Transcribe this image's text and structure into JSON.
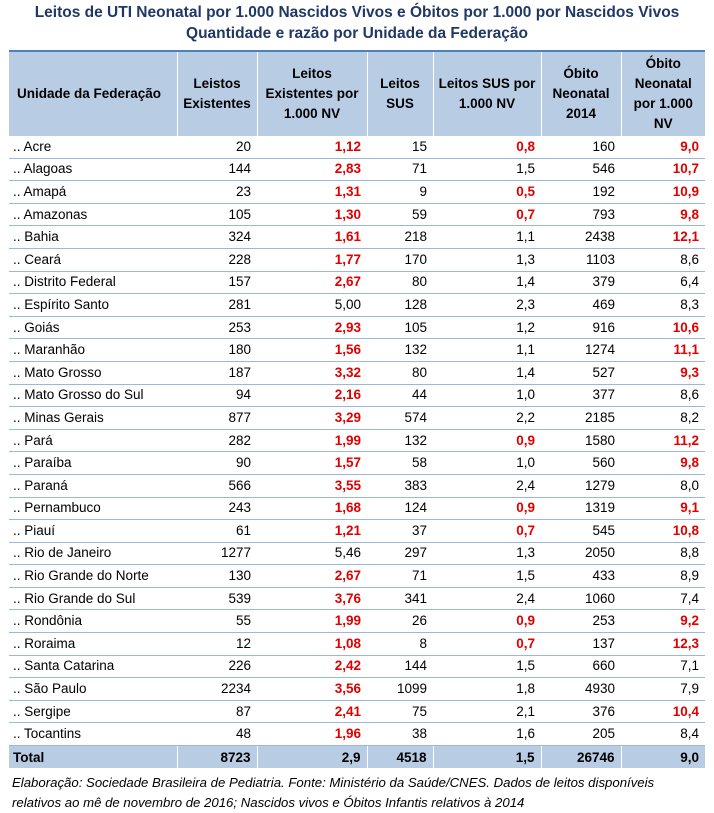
{
  "title_line1": "Leitos de UTI Neonatal por 1.000 Nascidos Vivos e Óbitos por 1.000 por Nascidos Vivos",
  "title_line2": "Quantidade e razão por Unidade da Federação",
  "colors": {
    "header_bg": "#b8cce4",
    "title": "#1f3864",
    "highlight": "#e00000",
    "row_border": "#9bb7d9"
  },
  "headers": {
    "uf": "Unidade da Federação",
    "leitos_existentes": "Leistos Existentes",
    "leitos_existentes_nv": "Leitos Existentes por 1.000 NV",
    "leitos_sus": "Leitos SUS",
    "leitos_sus_nv": "Leitos SUS por 1.000 NV",
    "obito_neonatal": "Óbito Neonatal 2014",
    "obito_neonatal_nv": "Óbito Neonatal por 1.000 NV"
  },
  "rows": [
    {
      "uf": ".. Acre",
      "le": "20",
      "lenv": "1,12",
      "lenv_red": true,
      "ls": "15",
      "lsnv": "0,8",
      "lsnv_red": true,
      "on": "160",
      "onnv": "9,0",
      "onnv_red": true
    },
    {
      "uf": ".. Alagoas",
      "le": "144",
      "lenv": "2,83",
      "lenv_red": true,
      "ls": "71",
      "lsnv": "1,5",
      "lsnv_red": false,
      "on": "546",
      "onnv": "10,7",
      "onnv_red": true
    },
    {
      "uf": ".. Amapá",
      "le": "23",
      "lenv": "1,31",
      "lenv_red": true,
      "ls": "9",
      "lsnv": "0,5",
      "lsnv_red": true,
      "on": "192",
      "onnv": "10,9",
      "onnv_red": true
    },
    {
      "uf": ".. Amazonas",
      "le": "105",
      "lenv": "1,30",
      "lenv_red": true,
      "ls": "59",
      "lsnv": "0,7",
      "lsnv_red": true,
      "on": "793",
      "onnv": "9,8",
      "onnv_red": true
    },
    {
      "uf": ".. Bahia",
      "le": "324",
      "lenv": "1,61",
      "lenv_red": true,
      "ls": "218",
      "lsnv": "1,1",
      "lsnv_red": false,
      "on": "2438",
      "onnv": "12,1",
      "onnv_red": true
    },
    {
      "uf": ".. Ceará",
      "le": "228",
      "lenv": "1,77",
      "lenv_red": true,
      "ls": "170",
      "lsnv": "1,3",
      "lsnv_red": false,
      "on": "1103",
      "onnv": "8,6",
      "onnv_red": false
    },
    {
      "uf": ".. Distrito Federal",
      "le": "157",
      "lenv": "2,67",
      "lenv_red": true,
      "ls": "80",
      "lsnv": "1,4",
      "lsnv_red": false,
      "on": "379",
      "onnv": "6,4",
      "onnv_red": false
    },
    {
      "uf": ".. Espírito Santo",
      "le": "281",
      "lenv": "5,00",
      "lenv_red": false,
      "ls": "128",
      "lsnv": "2,3",
      "lsnv_red": false,
      "on": "469",
      "onnv": "8,3",
      "onnv_red": false
    },
    {
      "uf": ".. Goiás",
      "le": "253",
      "lenv": "2,93",
      "lenv_red": true,
      "ls": "105",
      "lsnv": "1,2",
      "lsnv_red": false,
      "on": "916",
      "onnv": "10,6",
      "onnv_red": true
    },
    {
      "uf": ".. Maranhão",
      "le": "180",
      "lenv": "1,56",
      "lenv_red": true,
      "ls": "132",
      "lsnv": "1,1",
      "lsnv_red": false,
      "on": "1274",
      "onnv": "11,1",
      "onnv_red": true
    },
    {
      "uf": ".. Mato Grosso",
      "le": "187",
      "lenv": "3,32",
      "lenv_red": true,
      "ls": "80",
      "lsnv": "1,4",
      "lsnv_red": false,
      "on": "527",
      "onnv": "9,3",
      "onnv_red": true
    },
    {
      "uf": ".. Mato Grosso do Sul",
      "le": "94",
      "lenv": "2,16",
      "lenv_red": true,
      "ls": "44",
      "lsnv": "1,0",
      "lsnv_red": false,
      "on": "377",
      "onnv": "8,6",
      "onnv_red": false
    },
    {
      "uf": ".. Minas Gerais",
      "le": "877",
      "lenv": "3,29",
      "lenv_red": true,
      "ls": "574",
      "lsnv": "2,2",
      "lsnv_red": false,
      "on": "2185",
      "onnv": "8,2",
      "onnv_red": false
    },
    {
      "uf": ".. Pará",
      "le": "282",
      "lenv": "1,99",
      "lenv_red": true,
      "ls": "132",
      "lsnv": "0,9",
      "lsnv_red": true,
      "on": "1580",
      "onnv": "11,2",
      "onnv_red": true
    },
    {
      "uf": ".. Paraíba",
      "le": "90",
      "lenv": "1,57",
      "lenv_red": true,
      "ls": "58",
      "lsnv": "1,0",
      "lsnv_red": false,
      "on": "560",
      "onnv": "9,8",
      "onnv_red": true
    },
    {
      "uf": ".. Paraná",
      "le": "566",
      "lenv": "3,55",
      "lenv_red": true,
      "ls": "383",
      "lsnv": "2,4",
      "lsnv_red": false,
      "on": "1279",
      "onnv": "8,0",
      "onnv_red": false
    },
    {
      "uf": ".. Pernambuco",
      "le": "243",
      "lenv": "1,68",
      "lenv_red": true,
      "ls": "124",
      "lsnv": "0,9",
      "lsnv_red": true,
      "on": "1319",
      "onnv": "9,1",
      "onnv_red": true
    },
    {
      "uf": ".. Piauí",
      "le": "61",
      "lenv": "1,21",
      "lenv_red": true,
      "ls": "37",
      "lsnv": "0,7",
      "lsnv_red": true,
      "on": "545",
      "onnv": "10,8",
      "onnv_red": true
    },
    {
      "uf": ".. Rio de Janeiro",
      "le": "1277",
      "lenv": "5,46",
      "lenv_red": false,
      "ls": "297",
      "lsnv": "1,3",
      "lsnv_red": false,
      "on": "2050",
      "onnv": "8,8",
      "onnv_red": false
    },
    {
      "uf": ".. Rio Grande do Norte",
      "le": "130",
      "lenv": "2,67",
      "lenv_red": true,
      "ls": "71",
      "lsnv": "1,5",
      "lsnv_red": false,
      "on": "433",
      "onnv": "8,9",
      "onnv_red": false
    },
    {
      "uf": ".. Rio Grande do Sul",
      "le": "539",
      "lenv": "3,76",
      "lenv_red": true,
      "ls": "341",
      "lsnv": "2,4",
      "lsnv_red": false,
      "on": "1060",
      "onnv": "7,4",
      "onnv_red": false
    },
    {
      "uf": ".. Rondônia",
      "le": "55",
      "lenv": "1,99",
      "lenv_red": true,
      "ls": "26",
      "lsnv": "0,9",
      "lsnv_red": true,
      "on": "253",
      "onnv": "9,2",
      "onnv_red": true
    },
    {
      "uf": ".. Roraima",
      "le": "12",
      "lenv": "1,08",
      "lenv_red": true,
      "ls": "8",
      "lsnv": "0,7",
      "lsnv_red": true,
      "on": "137",
      "onnv": "12,3",
      "onnv_red": true
    },
    {
      "uf": ".. Santa Catarina",
      "le": "226",
      "lenv": "2,42",
      "lenv_red": true,
      "ls": "144",
      "lsnv": "1,5",
      "lsnv_red": false,
      "on": "660",
      "onnv": "7,1",
      "onnv_red": false
    },
    {
      "uf": ".. São Paulo",
      "le": "2234",
      "lenv": "3,56",
      "lenv_red": true,
      "ls": "1099",
      "lsnv": "1,8",
      "lsnv_red": false,
      "on": "4930",
      "onnv": "7,9",
      "onnv_red": false
    },
    {
      "uf": ".. Sergipe",
      "le": "87",
      "lenv": "2,41",
      "lenv_red": true,
      "ls": "75",
      "lsnv": "2,1",
      "lsnv_red": false,
      "on": "376",
      "onnv": "10,4",
      "onnv_red": true
    },
    {
      "uf": ".. Tocantins",
      "le": "48",
      "lenv": "1,96",
      "lenv_red": true,
      "ls": "38",
      "lsnv": "1,6",
      "lsnv_red": false,
      "on": "205",
      "onnv": "8,4",
      "onnv_red": false
    }
  ],
  "total": {
    "uf": "Total",
    "le": "8723",
    "lenv": "2,9",
    "ls": "4518",
    "lsnv": "1,5",
    "on": "26746",
    "onnv": "9,0"
  },
  "note": "Elaboração: Sociedade Brasileira de Pediatria. Fonte: Ministério da Saúde/CNES. Dados de leitos disponíveis relativos ao mê de novembro de 2016; Nascidos vivos e Óbitos Infantis relativos à 2014"
}
